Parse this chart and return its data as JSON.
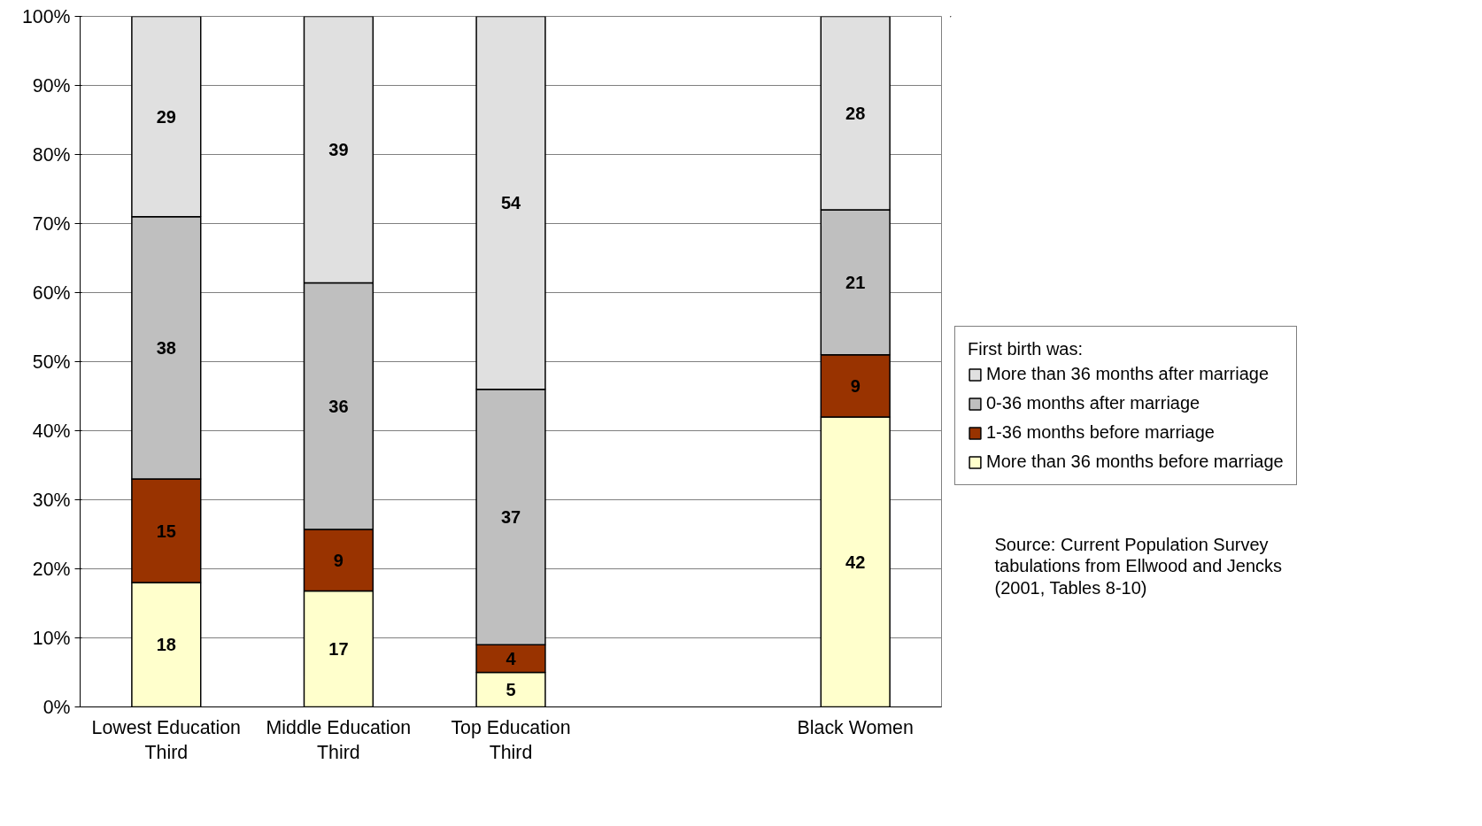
{
  "chart_data": {
    "type": "bar",
    "stacked": true,
    "categories": [
      "Lowest Education Third",
      "Middle Education Third",
      "Top Education Third",
      null,
      "Black Women"
    ],
    "series": [
      {
        "name": "More than 36 months before marriage",
        "color": "#ffffcc",
        "values": [
          18,
          16.8,
          5,
          null,
          42
        ],
        "value_labels": [
          "18",
          "17",
          "5",
          null,
          "42"
        ]
      },
      {
        "name": "1-36 months before marriage",
        "color": "#993300",
        "values": [
          15,
          8.9,
          4,
          null,
          9
        ],
        "value_labels": [
          "15",
          "9",
          "4",
          null,
          "9"
        ]
      },
      {
        "name": "0-36 months after marriage",
        "color": "#bfbfbf",
        "values": [
          38,
          35.7,
          37,
          null,
          21
        ],
        "value_labels": [
          "38",
          "36",
          "37",
          null,
          "21"
        ]
      },
      {
        "name": "More than 36 months after marriage",
        "color": "#e0e0e0",
        "values": [
          29,
          38.6,
          54,
          null,
          28
        ],
        "value_labels": [
          "29",
          "39",
          "54",
          null,
          "28"
        ]
      }
    ],
    "ylim": [
      0,
      100
    ],
    "yticks": [
      {
        "value": 0,
        "label": "0%"
      },
      {
        "value": 10,
        "label": "10%"
      },
      {
        "value": 20,
        "label": "20%"
      },
      {
        "value": 30,
        "label": "30%"
      },
      {
        "value": 40,
        "label": "40%"
      },
      {
        "value": 50,
        "label": "50%"
      },
      {
        "value": 60,
        "label": "60%"
      },
      {
        "value": 70,
        "label": "70%"
      },
      {
        "value": 80,
        "label": "80%"
      },
      {
        "value": 90,
        "label": "90%"
      },
      {
        "value": 100,
        "label": "100%"
      }
    ],
    "grid": "y",
    "legend": "right",
    "legend_title": "First birth was:",
    "annotations": [
      "Source: Current Population Survey tabulations from Ellwood and Jencks (2001, Tables 8-10)"
    ]
  }
}
